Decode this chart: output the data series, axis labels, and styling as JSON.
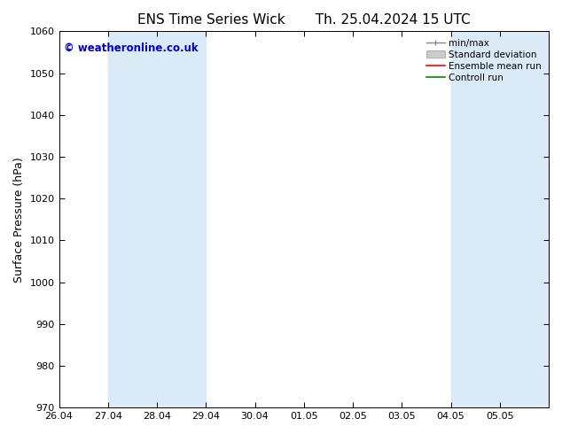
{
  "title_left": "ENS Time Series Wick",
  "title_right": "Th. 25.04.2024 15 UTC",
  "ylabel": "Surface Pressure (hPa)",
  "ylim": [
    970,
    1060
  ],
  "yticks": [
    970,
    980,
    990,
    1000,
    1010,
    1020,
    1030,
    1040,
    1050,
    1060
  ],
  "xtick_labels": [
    "26.04",
    "27.04",
    "28.04",
    "29.04",
    "30.04",
    "01.05",
    "02.05",
    "03.05",
    "04.05",
    "05.05"
  ],
  "n_ticks": 10,
  "xlim": [
    0,
    10
  ],
  "shaded_bands": [
    {
      "x_start": 1.0,
      "x_end": 2.0
    },
    {
      "x_start": 2.0,
      "x_end": 3.0
    },
    {
      "x_start": 8.0,
      "x_end": 9.0
    },
    {
      "x_start": 9.0,
      "x_end": 10.0
    }
  ],
  "band_color": "#daeaf7",
  "watermark": "© weatheronline.co.uk",
  "watermark_color": "#0000cc",
  "background_color": "#ffffff",
  "legend_labels": [
    "min/max",
    "Standard deviation",
    "Ensemble mean run",
    "Controll run"
  ],
  "legend_colors": [
    "#888888",
    "#cccccc",
    "#ff0000",
    "#008800"
  ],
  "title_fontsize": 11,
  "ylabel_fontsize": 9,
  "tick_fontsize": 8,
  "legend_fontsize": 7.5
}
